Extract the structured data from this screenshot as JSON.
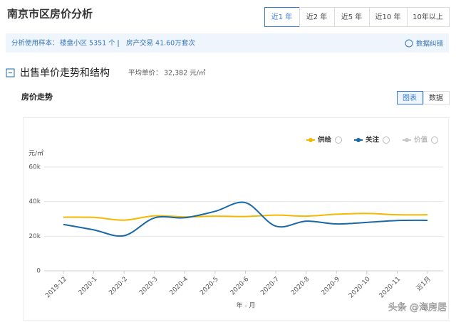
{
  "header": {
    "title": "南京市区房价分析",
    "tabs": [
      "近1 年",
      "近2 年",
      "近5 年",
      "近10 年",
      "10年以上"
    ],
    "active_tab": 0
  },
  "info": {
    "sample_label": "分析使用样本：",
    "sample_items": [
      "楼盘小区 5351 个",
      "房产交易 41.60万套次"
    ],
    "feedback": "数据纠错"
  },
  "section": {
    "title": "出售单价走势和结构",
    "avg_label": "平均单价：",
    "avg_value": "32,382 元/㎡"
  },
  "panel": {
    "title": "房价走势",
    "views": [
      "图表",
      "数据"
    ],
    "active_view": 0
  },
  "watermark": "头条 @海房居",
  "chart_data": {
    "type": "line",
    "ylabel": "元/㎡",
    "xlabel": "年 - 月",
    "categories": [
      "2019-12",
      "2020-1",
      "2020-2",
      "2020-3",
      "2020-4",
      "2020-5",
      "2020-6",
      "2020-7",
      "2020-8",
      "2020-9",
      "2020-10",
      "2020-11",
      "近1月"
    ],
    "series": [
      {
        "name": "供给",
        "color": "#f5b800",
        "values": [
          31000,
          30900,
          29300,
          31800,
          31200,
          31600,
          31400,
          32200,
          31600,
          32700,
          33200,
          32400,
          32400
        ]
      },
      {
        "name": "关注",
        "color": "#1a68a6",
        "values": [
          26800,
          23700,
          20300,
          30600,
          30700,
          34400,
          39400,
          25800,
          28700,
          27100,
          28000,
          29100,
          29200
        ]
      },
      {
        "name": "价值",
        "color": "#c8c8c8",
        "hidden": true,
        "values": [
          null,
          null,
          null,
          null,
          null,
          null,
          null,
          null,
          null,
          null,
          null,
          null,
          null
        ]
      }
    ],
    "ylim": [
      0,
      60000
    ],
    "yticks": [
      0,
      {
        "value": 20000,
        "label": "20k"
      },
      {
        "value": 40000,
        "label": "40k"
      },
      {
        "value": 60000,
        "label": "60k"
      }
    ],
    "grid": true
  }
}
